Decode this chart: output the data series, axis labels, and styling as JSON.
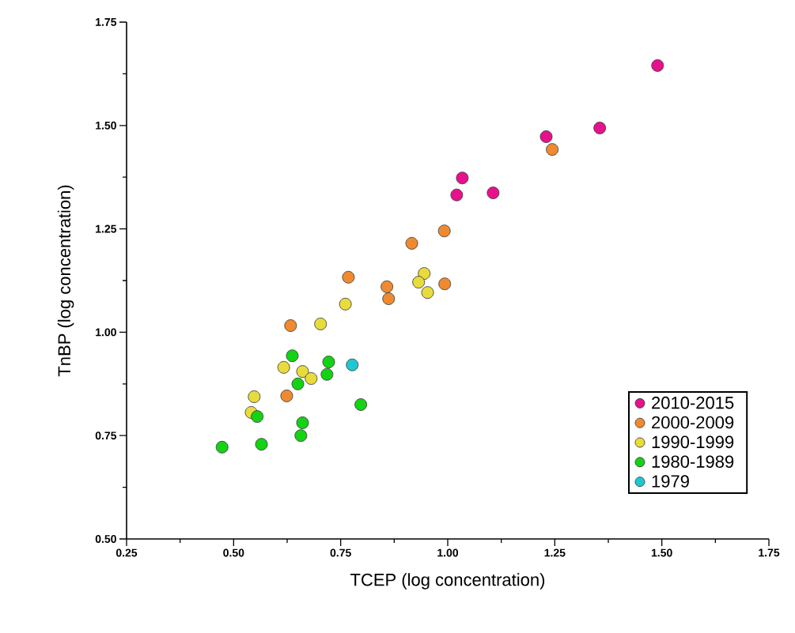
{
  "chart_data": {
    "type": "scatter",
    "xlabel": "TCEP (log concentration)",
    "ylabel": "TnBP (log concentration)",
    "xlim": [
      0.25,
      1.75
    ],
    "ylim": [
      0.5,
      1.75
    ],
    "xticks": [
      {
        "value": 0.25,
        "label": "0.25"
      },
      {
        "value": 0.5,
        "label": "0.50"
      },
      {
        "value": 0.75,
        "label": "0.75"
      },
      {
        "value": 1.0,
        "label": "1.00"
      },
      {
        "value": 1.25,
        "label": "1.25"
      },
      {
        "value": 1.5,
        "label": "1.50"
      },
      {
        "value": 1.75,
        "label": "1.75"
      }
    ],
    "yticks": [
      {
        "value": 0.5,
        "label": "0.50"
      },
      {
        "value": 0.75,
        "label": "0.75"
      },
      {
        "value": 1.0,
        "label": "1.00"
      },
      {
        "value": 1.25,
        "label": "1.25"
      },
      {
        "value": 1.5,
        "label": "1.50"
      },
      {
        "value": 1.75,
        "label": "1.75"
      }
    ],
    "grid": false,
    "legend": "bottom right",
    "marker": "circle",
    "series": [
      {
        "name": "2010-2015",
        "color": "#e8108c",
        "x": [
          1.49,
          1.355,
          1.23,
          1.106,
          1.034,
          1.021
        ],
        "values": [
          1.645,
          1.494,
          1.473,
          1.337,
          1.373,
          1.332
        ]
      },
      {
        "name": "2000-2009",
        "color": "#f08a30",
        "x": [
          1.244,
          0.992,
          0.916,
          0.993,
          0.858,
          0.862,
          0.768,
          0.633,
          0.624
        ],
        "values": [
          1.442,
          1.245,
          1.215,
          1.117,
          1.11,
          1.081,
          1.133,
          1.016,
          0.846
        ]
      },
      {
        "name": "1990-1999",
        "color": "#e8dc3c",
        "x": [
          0.945,
          0.932,
          0.953,
          0.761,
          0.703,
          0.617,
          0.661,
          0.681,
          0.548,
          0.541
        ],
        "values": [
          1.142,
          1.121,
          1.096,
          1.068,
          1.02,
          0.915,
          0.905,
          0.888,
          0.844,
          0.806
        ]
      },
      {
        "name": "1980-1989",
        "color": "#14d214",
        "x": [
          0.637,
          0.722,
          0.718,
          0.65,
          0.555,
          0.797,
          0.661,
          0.657,
          0.473,
          0.565
        ],
        "values": [
          0.943,
          0.928,
          0.898,
          0.875,
          0.796,
          0.825,
          0.781,
          0.75,
          0.722,
          0.729
        ]
      },
      {
        "name": "1979",
        "color": "#1ec8d2",
        "x": [
          0.777
        ],
        "values": [
          0.921
        ]
      }
    ]
  }
}
